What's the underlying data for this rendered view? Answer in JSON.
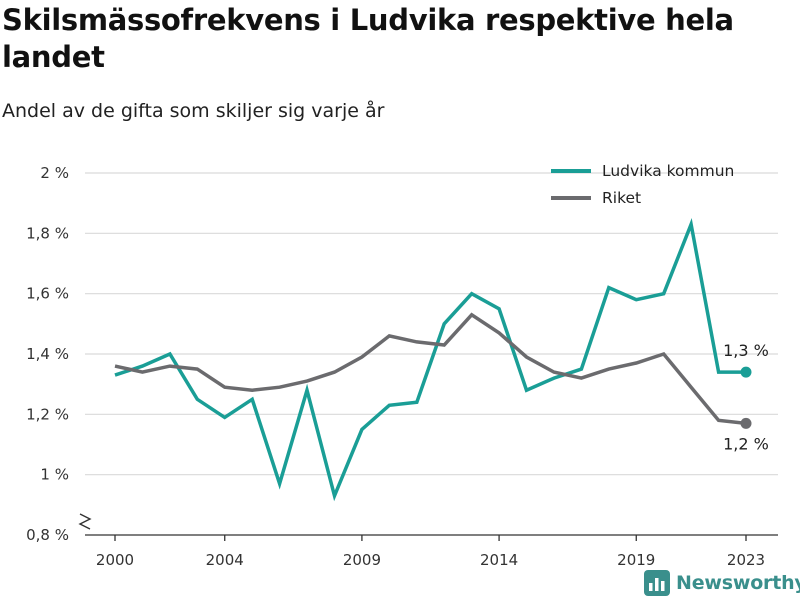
{
  "title": "Skilsmässofrekvens i Ludvika respektive hela landet",
  "subtitle": "Andel av de gifta som skiljer sig varje år",
  "logo_text": "Newsworthy",
  "colors": {
    "ludvika": "#1a9e96",
    "riket": "#6b6b6e",
    "grid": "#d9d9d9",
    "logo": "#3a8f8c"
  },
  "chart_data": {
    "type": "line",
    "title": "Skilsmässofrekvens i Ludvika respektive hela landet",
    "subtitle": "Andel av de gifta som skiljer sig varje år",
    "x": [
      2000,
      2001,
      2002,
      2003,
      2004,
      2005,
      2006,
      2007,
      2008,
      2009,
      2010,
      2011,
      2012,
      2013,
      2014,
      2015,
      2016,
      2017,
      2018,
      2019,
      2020,
      2021,
      2022,
      2023
    ],
    "x_ticks": [
      "2000",
      "2004",
      "2009",
      "2014",
      "2019",
      "2023"
    ],
    "y_ticks": [
      "0,8 %",
      "1 %",
      "1,2 %",
      "1,4 %",
      "1,6 %",
      "1,8 %",
      "2 %"
    ],
    "ylim": [
      0.8,
      2.0
    ],
    "y_axis_break": true,
    "grid": true,
    "legend_position": "top-right",
    "series": [
      {
        "name": "Ludvika kommun",
        "color": "#1a9e96",
        "values": [
          1.33,
          1.36,
          1.4,
          1.25,
          1.19,
          1.25,
          0.97,
          1.28,
          0.93,
          1.15,
          1.23,
          1.24,
          1.5,
          1.6,
          1.55,
          1.28,
          1.32,
          1.35,
          1.62,
          1.58,
          1.6,
          1.83,
          1.34,
          1.34
        ],
        "end_label": "1,3 %"
      },
      {
        "name": "Riket",
        "color": "#6b6b6e",
        "values": [
          1.36,
          1.34,
          1.36,
          1.35,
          1.29,
          1.28,
          1.29,
          1.31,
          1.34,
          1.39,
          1.46,
          1.44,
          1.43,
          1.53,
          1.47,
          1.39,
          1.34,
          1.32,
          1.35,
          1.37,
          1.4,
          1.29,
          1.18,
          1.17
        ],
        "end_label": "1,2 %"
      }
    ]
  }
}
